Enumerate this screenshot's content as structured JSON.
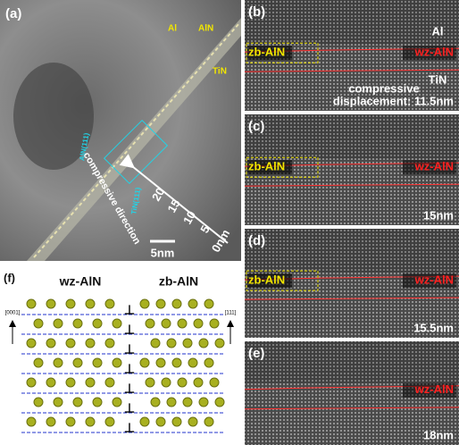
{
  "panels": {
    "a": {
      "label": "(a)",
      "phases": [
        "Al",
        "AlN",
        "TiN"
      ],
      "planes": [
        "AlN(111)",
        "TiN(111)"
      ],
      "arrow_label": "compressive direction",
      "scale_ticks": [
        "20",
        "15",
        "10",
        "5",
        "0nm"
      ],
      "scale_bar": "5nm"
    },
    "b": {
      "label": "(b)",
      "top": "Al",
      "left": "zb-AlN",
      "right": "wz-AlN",
      "bottom": "TiN",
      "note_lines": [
        "compressive",
        "displacement: 11.5nm"
      ]
    },
    "c": {
      "label": "(c)",
      "left": "zb-AlN",
      "right": "wz-AlN",
      "note_lines": [
        "15nm"
      ]
    },
    "d": {
      "label": "(d)",
      "left": "zb-AlN",
      "right": "wz-AlN",
      "note_lines": [
        "15.5nm"
      ]
    },
    "e": {
      "label": "(e)",
      "right": "wz-AlN",
      "note_lines": [
        "18nm"
      ]
    },
    "f": {
      "label": "(f)",
      "left_title": "wz-AlN",
      "right_title": "zb-AlN",
      "left_axis": "[0001]",
      "right_axis": "[111]"
    }
  }
}
